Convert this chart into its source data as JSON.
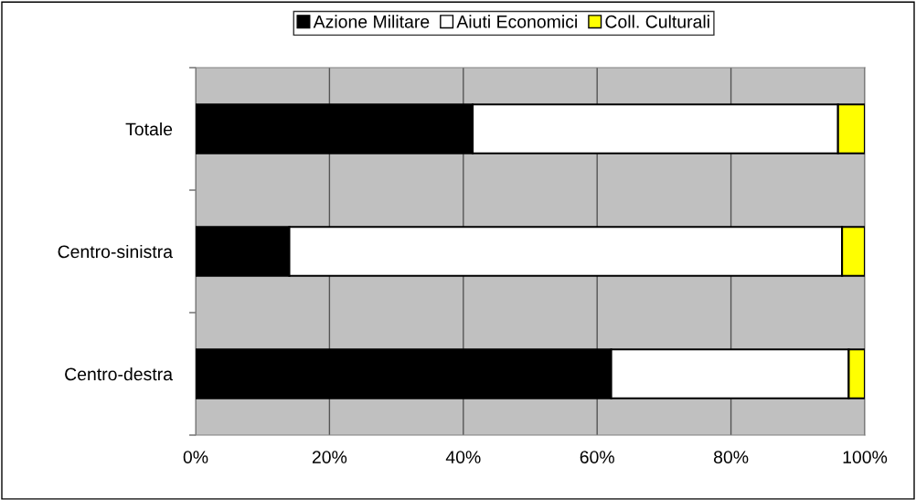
{
  "chart_data": {
    "type": "bar",
    "orientation": "horizontal",
    "stacked": true,
    "categories": [
      "Totale",
      "Centro-sinistra",
      "Centro-destra"
    ],
    "series": [
      {
        "name": "Azione Militare",
        "color": "#000000",
        "values": [
          41.4,
          14.0,
          62.1
        ]
      },
      {
        "name": "Aiuti Economici",
        "color": "#ffffff",
        "values": [
          54.6,
          82.6,
          35.5
        ]
      },
      {
        "name": "Coll. Culturali",
        "color": "#ffff00",
        "values": [
          4.0,
          3.4,
          2.4
        ]
      }
    ],
    "xlim": [
      0,
      100
    ],
    "xticks": [
      {
        "value": 0,
        "label": "0%"
      },
      {
        "value": 20,
        "label": "20%"
      },
      {
        "value": 40,
        "label": "40%"
      },
      {
        "value": 60,
        "label": "60%"
      },
      {
        "value": 80,
        "label": "80%"
      },
      {
        "value": 100,
        "label": "100%"
      }
    ],
    "grid": "x",
    "legend": "top"
  }
}
